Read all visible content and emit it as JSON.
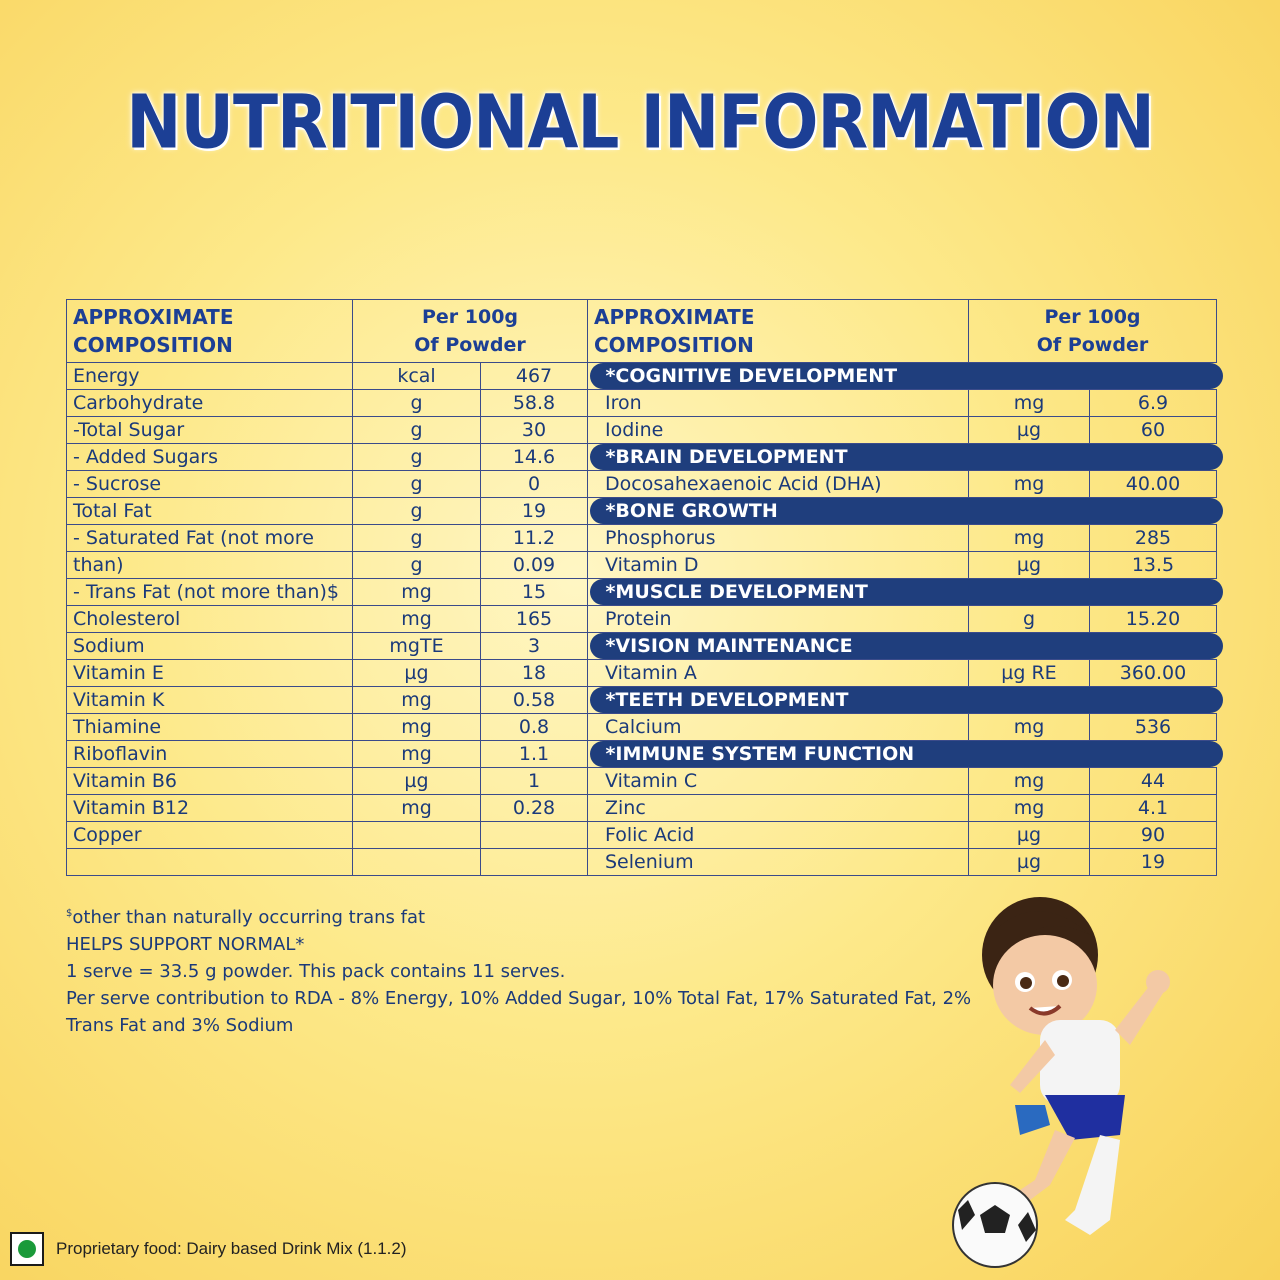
{
  "title": "NUTRITIONAL INFORMATION",
  "left_table": {
    "header_composition": [
      "APPROXIMATE",
      "COMPOSITION"
    ],
    "header_per": [
      "Per 100g",
      "Of Powder"
    ],
    "rows": [
      {
        "name": "Energy",
        "unit": "kcal",
        "value": "467"
      },
      {
        "name": "Carbohydrate",
        "unit": "g",
        "value": "58.8"
      },
      {
        "name": " -Total Sugar",
        "unit": "g",
        "value": "30"
      },
      {
        "name": " - Added Sugars",
        "unit": "g",
        "value": "14.6"
      },
      {
        "name": " - Sucrose",
        "unit": "g",
        "value": "0"
      },
      {
        "name": "Total Fat",
        "unit": "g",
        "value": "19"
      },
      {
        "name": " - Saturated Fat (not more",
        "unit": "g",
        "value": "11.2"
      },
      {
        "name": "than)",
        "unit": "g",
        "value": "0.09"
      },
      {
        "name": " - Trans Fat (not more than)$",
        "unit": "mg",
        "value": "15"
      },
      {
        "name": "Cholesterol",
        "unit": "mg",
        "value": "165"
      },
      {
        "name": "Sodium",
        "unit": "mgTE",
        "value": "3"
      },
      {
        "name": "Vitamin E",
        "unit": "µg",
        "value": "18"
      },
      {
        "name": "Vitamin K",
        "unit": "mg",
        "value": "0.58"
      },
      {
        "name": "Thiamine",
        "unit": "mg",
        "value": "0.8"
      },
      {
        "name": "Riboflavin",
        "unit": "mg",
        "value": "1.1"
      },
      {
        "name": "Vitamin B6",
        "unit": "µg",
        "value": "1"
      },
      {
        "name": "Vitamin B12",
        "unit": "mg",
        "value": "0.28"
      },
      {
        "name": "Copper",
        "unit": "",
        "value": ""
      },
      {
        "name": "",
        "unit": "",
        "value": ""
      }
    ]
  },
  "right_table": {
    "header_composition": [
      "APPROXIMATE",
      "COMPOSITION"
    ],
    "header_per": [
      "Per 100g",
      "Of Powder"
    ],
    "rows": [
      {
        "category": "*COGNITIVE DEVELOPMENT"
      },
      {
        "name": "Iron",
        "unit": "mg",
        "value": "6.9"
      },
      {
        "name": "Iodine",
        "unit": "µg",
        "value": "60"
      },
      {
        "category": "*BRAIN DEVELOPMENT"
      },
      {
        "name": "Docosahexaenoic Acid (DHA)",
        "unit": "mg",
        "value": "40.00"
      },
      {
        "category": "*BONE GROWTH"
      },
      {
        "name": "Phosphorus",
        "unit": "mg",
        "value": "285"
      },
      {
        "name": "Vitamin D",
        "unit": "µg",
        "value": "13.5"
      },
      {
        "category": "*MUSCLE DEVELOPMENT"
      },
      {
        "name": "Protein",
        "unit": "g",
        "value": "15.20"
      },
      {
        "category": "*VISION MAINTENANCE"
      },
      {
        "name": "Vitamin A",
        "unit": "µg RE",
        "value": "360.00"
      },
      {
        "category": "*TEETH DEVELOPMENT"
      },
      {
        "name": "Calcium",
        "unit": "mg",
        "value": "536"
      },
      {
        "category": "*IMMUNE SYSTEM FUNCTION"
      },
      {
        "name": "Vitamin C",
        "unit": "mg",
        "value": "44"
      },
      {
        "name": "Zinc",
        "unit": "mg",
        "value": "4.1"
      },
      {
        "name": "Folic Acid",
        "unit": "µg",
        "value": "90"
      },
      {
        "name": "Selenium",
        "unit": "µg",
        "value": "19"
      }
    ]
  },
  "notes": {
    "footnote_mark": "$",
    "footnote": "other than naturally occurring trans fat",
    "line2": "HELPS SUPPORT NORMAL*",
    "line3": "1 serve = 33.5 g powder. This pack contains 11 serves.",
    "line4": "Per serve contribution to RDA - 8% Energy, 10% Added Sugar, 10% Total Fat, 17% Saturated Fat, 2%",
    "line5": "Trans Fat and 3% Sodium"
  },
  "footer": {
    "text": "Proprietary food: Dairy based Drink Mix (1.1.2)",
    "veg_mark_color": "#1a9a3a"
  },
  "colors": {
    "title": "#1c3f95",
    "category_bar": "#1f3e7d",
    "background": "#fde98a"
  }
}
